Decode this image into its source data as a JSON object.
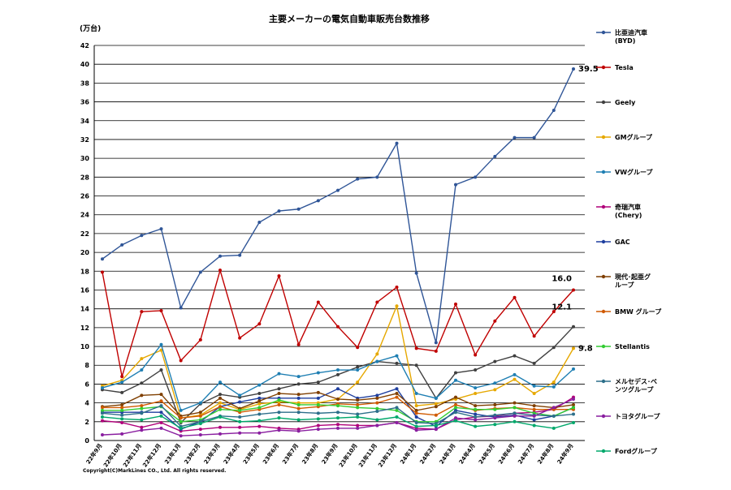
{
  "chart_data": {
    "type": "line",
    "title": "主要メーカーの電気自動車販売台数推移",
    "unit_label": "(万台)",
    "copyright": "Copyright(C)MarkLines CO., Ltd. All rights reserved.",
    "ylim": [
      0,
      42
    ],
    "yticks": [
      0,
      2,
      4,
      6,
      8,
      10,
      12,
      14,
      16,
      18,
      20,
      22,
      24,
      26,
      28,
      30,
      32,
      34,
      36,
      38,
      40,
      42
    ],
    "grid": true,
    "legend_position": "right",
    "categories": [
      "22年9月",
      "22年10月",
      "22年11月",
      "22年12月",
      "23年1月",
      "23年2月",
      "23年3月",
      "23年4月",
      "23年5月",
      "23年6月",
      "23年7月",
      "23年8月",
      "23年9月",
      "23年10月",
      "23年11月",
      "23年12月",
      "24年1月",
      "24年2月",
      "24年3月",
      "24年4月",
      "24年5月",
      "24年6月",
      "24年7月",
      "24年8月",
      "24年9月"
    ],
    "series": [
      {
        "name": "比亜迪汽車\n(BYD)",
        "color": "#2f5597",
        "values": [
          19.3,
          20.8,
          21.8,
          22.5,
          14.1,
          17.9,
          19.6,
          19.7,
          23.2,
          24.4,
          24.6,
          25.5,
          26.6,
          27.8,
          28.0,
          31.6,
          17.8,
          10.4,
          27.2,
          28.0,
          30.2,
          32.2,
          32.2,
          35.1,
          39.5
        ]
      },
      {
        "name": "Tesla",
        "color": "#c00000",
        "values": [
          17.9,
          6.8,
          13.7,
          13.8,
          8.5,
          10.7,
          18.1,
          10.9,
          12.4,
          17.5,
          10.2,
          14.7,
          12.1,
          9.9,
          14.7,
          16.3,
          9.8,
          9.5,
          14.5,
          9.1,
          12.7,
          15.2,
          11.1,
          13.7,
          16.0
        ]
      },
      {
        "name": "Geely",
        "color": "#404040",
        "values": [
          5.4,
          5.1,
          6.1,
          7.5,
          1.9,
          3.9,
          4.9,
          4.6,
          5.0,
          5.5,
          6.0,
          6.2,
          7.0,
          7.8,
          8.4,
          8.2,
          8.0,
          4.5,
          7.2,
          7.5,
          8.4,
          9.0,
          8.2,
          9.9,
          12.1
        ]
      },
      {
        "name": "GMグループ",
        "color": "#e6a800",
        "values": [
          5.8,
          6.4,
          8.7,
          9.6,
          2.4,
          2.7,
          4.0,
          3.3,
          3.9,
          4.1,
          4.0,
          4.0,
          4.4,
          6.2,
          9.2,
          14.3,
          3.7,
          3.9,
          4.4,
          5.0,
          5.4,
          6.5,
          5.0,
          6.2,
          9.8
        ]
      },
      {
        "name": "VWグループ",
        "color": "#1f7fb3",
        "values": [
          5.6,
          6.2,
          7.5,
          10.2,
          3.2,
          4.0,
          6.2,
          4.8,
          5.9,
          7.1,
          6.8,
          7.2,
          7.5,
          7.5,
          8.4,
          9.0,
          5.0,
          4.5,
          6.4,
          5.6,
          6.1,
          7.0,
          5.8,
          5.7,
          7.6
        ]
      },
      {
        "name": "奇瑞汽車\n(Chery)",
        "color": "#b0007a",
        "values": [
          2.1,
          1.9,
          1.4,
          1.9,
          1.0,
          1.2,
          1.4,
          1.4,
          1.5,
          1.3,
          1.2,
          1.6,
          1.7,
          1.6,
          1.6,
          1.9,
          1.3,
          1.2,
          2.2,
          2.5,
          2.6,
          2.9,
          3.0,
          3.3,
          4.6
        ]
      },
      {
        "name": "GAC",
        "color": "#1f3f9f",
        "values": [
          3.0,
          3.0,
          3.0,
          3.0,
          1.2,
          2.0,
          3.6,
          4.1,
          4.5,
          4.5,
          4.5,
          4.5,
          5.5,
          4.5,
          4.8,
          5.5,
          2.5,
          1.5,
          3.2,
          2.8,
          2.5,
          2.7,
          2.2,
          2.6,
          3.5
        ]
      },
      {
        "name": "現代･起亜グ\nループ",
        "color": "#7f3f00",
        "values": [
          3.6,
          3.8,
          4.8,
          4.9,
          2.6,
          3.0,
          4.5,
          3.4,
          4.2,
          5.0,
          4.9,
          5.1,
          4.4,
          4.3,
          4.5,
          5.0,
          3.2,
          3.6,
          4.6,
          3.7,
          3.8,
          4.0,
          3.7,
          3.5,
          3.8
        ]
      },
      {
        "name": "BMW グループ",
        "color": "#d05a00",
        "values": [
          3.5,
          3.5,
          3.7,
          4.2,
          2.4,
          2.6,
          3.6,
          3.0,
          3.3,
          3.8,
          3.4,
          3.6,
          3.9,
          3.8,
          4.0,
          4.6,
          2.9,
          2.7,
          3.8,
          3.2,
          3.4,
          3.5,
          3.3,
          3.3,
          3.3
        ]
      },
      {
        "name": "Stellantis",
        "color": "#33cc33",
        "values": [
          3.2,
          3.2,
          3.4,
          3.6,
          2.0,
          2.2,
          3.3,
          3.2,
          3.5,
          4.3,
          3.8,
          3.8,
          3.7,
          3.5,
          3.4,
          3.2,
          2.0,
          2.0,
          3.5,
          3.3,
          3.3,
          3.5,
          2.9,
          2.6,
          3.5
        ]
      },
      {
        "name": "メルセデス･ベ\nンツグループ",
        "color": "#2d6f8a",
        "values": [
          2.9,
          2.7,
          2.9,
          3.7,
          1.5,
          2.0,
          2.6,
          2.5,
          2.8,
          3.0,
          3.0,
          2.9,
          3.0,
          2.8,
          3.1,
          3.5,
          1.9,
          1.8,
          3.0,
          2.5,
          2.7,
          2.9,
          2.7,
          2.6,
          2.8
        ]
      },
      {
        "name": "トヨタグループ",
        "color": "#8a1fa0",
        "values": [
          0.6,
          0.7,
          1.1,
          1.3,
          0.5,
          0.6,
          0.7,
          0.8,
          0.8,
          1.1,
          1.0,
          1.2,
          1.3,
          1.3,
          1.6,
          1.9,
          1.1,
          1.2,
          2.4,
          2.2,
          2.4,
          2.6,
          2.6,
          3.5,
          4.4
        ]
      },
      {
        "name": "Fordグループ",
        "color": "#00a86b",
        "values": [
          2.5,
          2.3,
          2.2,
          2.6,
          1.3,
          1.8,
          2.5,
          2.0,
          2.1,
          2.4,
          2.2,
          2.3,
          2.4,
          2.5,
          2.2,
          2.5,
          1.5,
          1.6,
          2.1,
          1.5,
          1.7,
          2.0,
          1.6,
          1.3,
          1.9
        ]
      }
    ],
    "annotations": [
      {
        "text": "39.5",
        "series": "比亜迪汽車\n(BYD)",
        "category": "24年9月",
        "value": 39.5
      },
      {
        "text": "16.0",
        "series": "Tesla",
        "category": "24年9月",
        "value": 16.0
      },
      {
        "text": "12.1",
        "series": "Geely",
        "category": "24年9月",
        "value": 12.1
      },
      {
        "text": "9.8",
        "series": "GMグループ",
        "category": "24年9月",
        "value": 9.8
      }
    ]
  }
}
